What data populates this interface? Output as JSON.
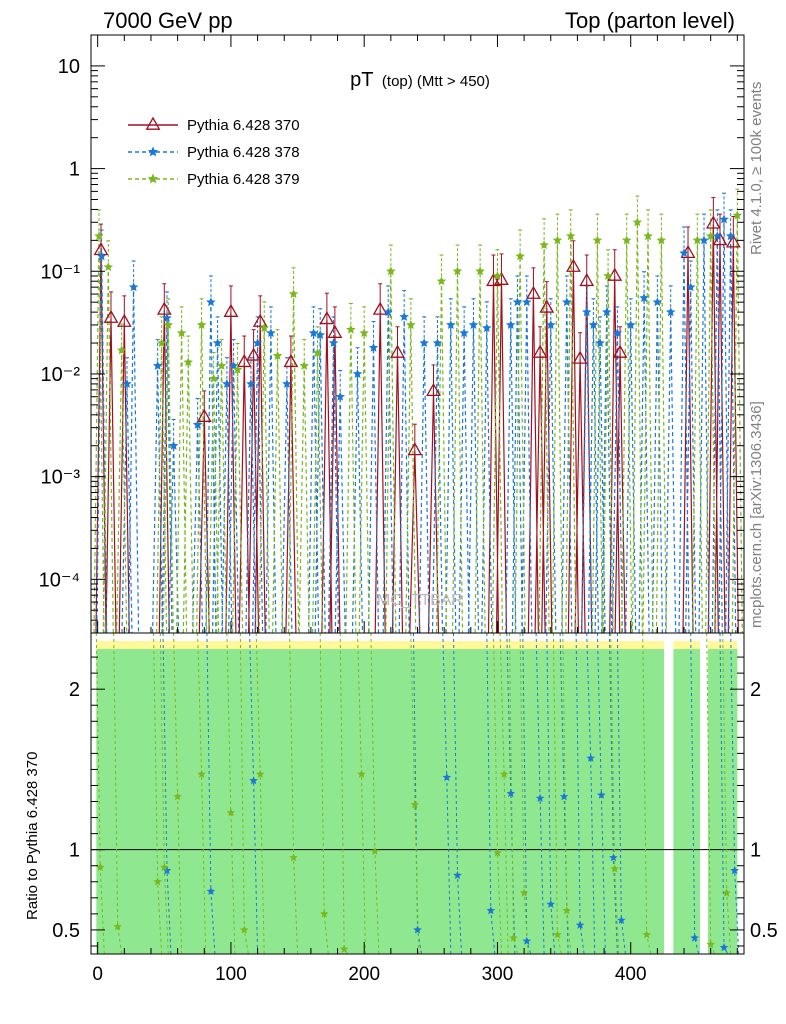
{
  "header": {
    "left": "7000 GeV pp",
    "right": "Top (parton level)"
  },
  "side_texts": {
    "rivet": "Rivet 4.1.0, ≥ 100k events",
    "mcplots": "mcplots.cern.ch [arXiv:1306.3436]"
  },
  "watermark": "MC_TTBAR",
  "chart_data": {
    "type": "line",
    "title": "pT (top) (Mtt > 450)",
    "title_main": "pT",
    "title_sub": "(top) (Mtt > 450)",
    "xlim": [
      -5,
      485
    ],
    "upper": {
      "yscale": "log",
      "ylim": [
        3e-05,
        20
      ],
      "ytick_labels": [
        {
          "value": 10,
          "text": "10"
        },
        {
          "value": 1,
          "text": "1"
        },
        {
          "value": 0.1,
          "text": "10⁻¹"
        },
        {
          "value": 0.01,
          "text": "10⁻²"
        },
        {
          "value": 0.001,
          "text": "10⁻³"
        },
        {
          "value": 0.0001,
          "text": "10⁻⁴"
        }
      ]
    },
    "lower": {
      "ylabel": "Ratio to Pythia 6.428 370",
      "ylim": [
        0.35,
        2.35
      ],
      "ytick_labels": [
        {
          "value": 2,
          "text": "2"
        },
        {
          "value": 1,
          "text": "1"
        },
        {
          "value": 0.5,
          "text": "0.5"
        }
      ]
    },
    "xtick_labels": [
      "0",
      "100",
      "200",
      "300",
      "400"
    ],
    "xtick_values": [
      0,
      100,
      200,
      300,
      400
    ],
    "legend": [
      {
        "name": "Pythia 6.428 370",
        "color": "#a01020",
        "marker": "triangle",
        "dash": "solid"
      },
      {
        "name": "Pythia 6.428 378",
        "color": "#1a78d8",
        "marker": "star",
        "dash": "dashed"
      },
      {
        "name": "Pythia 6.428 379",
        "color": "#7ab81e",
        "marker": "star",
        "dash": "dashed"
      }
    ],
    "series": [
      {
        "name": "Pythia 6.428 370",
        "points": [
          [
            2.5,
            0.16
          ],
          [
            10,
            0.035
          ],
          [
            20,
            0.032
          ],
          [
            50,
            0.042
          ],
          [
            80,
            0.0038
          ],
          [
            100,
            0.04
          ],
          [
            110,
            0.013
          ],
          [
            117,
            0.015
          ],
          [
            122,
            0.032
          ],
          [
            145,
            0.013
          ],
          [
            172,
            0.034
          ],
          [
            178,
            0.025
          ],
          [
            212,
            0.042
          ],
          [
            225,
            0.016
          ],
          [
            238,
            0.0018
          ],
          [
            252,
            0.0068
          ],
          [
            297,
            0.08
          ],
          [
            303,
            0.082
          ],
          [
            327,
            0.06
          ],
          [
            332,
            0.016
          ],
          [
            337,
            0.044
          ],
          [
            357,
            0.11
          ],
          [
            362,
            0.014
          ],
          [
            367,
            0.08
          ],
          [
            388,
            0.09
          ],
          [
            392,
            0.016
          ],
          [
            443,
            0.15
          ],
          [
            462,
            0.29
          ],
          [
            467,
            0.2
          ],
          [
            477,
            0.19
          ]
        ]
      },
      {
        "name": "Pythia 6.428 378",
        "points": [
          [
            3,
            0.14
          ],
          [
            22,
            0.008
          ],
          [
            27,
            0.07
          ],
          [
            45,
            0.012
          ],
          [
            52,
            0.035
          ],
          [
            57,
            0.002
          ],
          [
            75,
            0.0032
          ],
          [
            85,
            0.05
          ],
          [
            90,
            0.02
          ],
          [
            97,
            0.008
          ],
          [
            102,
            0.012
          ],
          [
            115,
            0.008
          ],
          [
            120,
            0.02
          ],
          [
            130,
            0.025
          ],
          [
            142,
            0.008
          ],
          [
            162,
            0.025
          ],
          [
            167,
            0.024
          ],
          [
            177,
            0.02
          ],
          [
            182,
            0.006
          ],
          [
            195,
            0.01
          ],
          [
            207,
            0.018
          ],
          [
            218,
            0.04
          ],
          [
            230,
            0.036
          ],
          [
            245,
            0.02
          ],
          [
            255,
            0.02
          ],
          [
            265,
            0.03
          ],
          [
            275,
            0.025
          ],
          [
            282,
            0.03
          ],
          [
            292,
            0.028
          ],
          [
            310,
            0.03
          ],
          [
            315,
            0.05
          ],
          [
            322,
            0.05
          ],
          [
            340,
            0.03
          ],
          [
            352,
            0.05
          ],
          [
            367,
            0.04
          ],
          [
            372,
            0.03
          ],
          [
            377,
            0.02
          ],
          [
            382,
            0.04
          ],
          [
            390,
            0.025
          ],
          [
            400,
            0.03
          ],
          [
            410,
            0.055
          ],
          [
            420,
            0.05
          ],
          [
            430,
            0.04
          ],
          [
            440,
            0.15
          ],
          [
            445,
            0.07
          ],
          [
            455,
            0.2
          ],
          [
            465,
            0.22
          ],
          [
            470,
            0.32
          ],
          [
            475,
            0.22
          ]
        ]
      },
      {
        "name": "Pythia 6.428 379",
        "points": [
          [
            1,
            0.22
          ],
          [
            8,
            0.11
          ],
          [
            18,
            0.017
          ],
          [
            48,
            0.02
          ],
          [
            53,
            0.03
          ],
          [
            63,
            0.025
          ],
          [
            68,
            0.013
          ],
          [
            78,
            0.03
          ],
          [
            87,
            0.009
          ],
          [
            93,
            0.012
          ],
          [
            105,
            0.011
          ],
          [
            125,
            0.028
          ],
          [
            135,
            0.015
          ],
          [
            147,
            0.06
          ],
          [
            155,
            0.012
          ],
          [
            165,
            0.016
          ],
          [
            190,
            0.027
          ],
          [
            200,
            0.025
          ],
          [
            220,
            0.1
          ],
          [
            235,
            0.03
          ],
          [
            258,
            0.08
          ],
          [
            270,
            0.1
          ],
          [
            287,
            0.1
          ],
          [
            300,
            0.09
          ],
          [
            317,
            0.14
          ],
          [
            335,
            0.18
          ],
          [
            345,
            0.2
          ],
          [
            355,
            0.22
          ],
          [
            375,
            0.2
          ],
          [
            383,
            0.09
          ],
          [
            397,
            0.2
          ],
          [
            405,
            0.3
          ],
          [
            413,
            0.22
          ],
          [
            423,
            0.2
          ],
          [
            450,
            0.2
          ],
          [
            460,
            0.22
          ],
          [
            480,
            0.35
          ]
        ]
      }
    ],
    "ratio": [
      {
        "name": "Pythia 6.428 378",
        "points": [
          [
            52,
            0.87
          ],
          [
            85,
            0.74
          ],
          [
            117,
            1.43
          ],
          [
            240,
            0.5
          ],
          [
            262,
            1.45
          ],
          [
            270,
            0.84
          ],
          [
            295,
            0.62
          ],
          [
            310,
            1.35
          ],
          [
            322,
            0.43
          ],
          [
            332,
            1.32
          ],
          [
            340,
            0.66
          ],
          [
            350,
            1.33
          ],
          [
            362,
            0.53
          ],
          [
            370,
            1.57
          ],
          [
            378,
            1.34
          ],
          [
            387,
            0.95
          ],
          [
            393,
            0.56
          ],
          [
            448,
            0.45
          ],
          [
            470,
            0.39
          ],
          [
            478,
            0.87
          ]
        ]
      },
      {
        "name": "Pythia 6.428 379",
        "points": [
          [
            2,
            0.89
          ],
          [
            15,
            0.52
          ],
          [
            45,
            0.8
          ],
          [
            50,
            0.89
          ],
          [
            60,
            1.33
          ],
          [
            78,
            1.47
          ],
          [
            100,
            1.23
          ],
          [
            110,
            0.5
          ],
          [
            122,
            1.47
          ],
          [
            147,
            0.95
          ],
          [
            170,
            0.6
          ],
          [
            185,
            0.38
          ],
          [
            198,
            1.47
          ],
          [
            208,
            0.99
          ],
          [
            238,
            1.28
          ],
          [
            300,
            0.98
          ],
          [
            305,
            1.47
          ],
          [
            312,
            0.45
          ],
          [
            320,
            0.73
          ],
          [
            345,
            0.47
          ],
          [
            352,
            0.62
          ],
          [
            388,
            0.88
          ],
          [
            412,
            0.47
          ],
          [
            460,
            0.41
          ],
          [
            472,
            0.73
          ]
        ]
      }
    ]
  }
}
